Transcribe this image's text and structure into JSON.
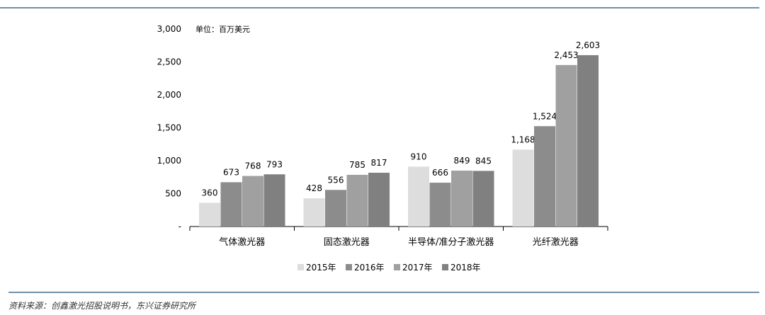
{
  "chart_data": {
    "type": "bar",
    "unit_note": "单位：百万美元",
    "categories": [
      "气体激光器",
      "固态激光器",
      "半导体/准分子激光器",
      "光纤激光器"
    ],
    "series": [
      {
        "name": "2015年",
        "values": [
          360,
          428,
          910,
          1168
        ],
        "color": "#dddddd"
      },
      {
        "name": "2016年",
        "values": [
          673,
          556,
          666,
          1524
        ],
        "color": "#8c8c8c"
      },
      {
        "name": "2017年",
        "values": [
          768,
          785,
          849,
          2453
        ],
        "color": "#a0a0a0"
      },
      {
        "name": "2018年",
        "values": [
          793,
          817,
          845,
          2603
        ],
        "color": "#808080"
      }
    ],
    "data_labels": [
      [
        "360",
        "428",
        "910",
        "1,168"
      ],
      [
        "673",
        "556",
        "666",
        "1,524"
      ],
      [
        "768",
        "785",
        "849",
        "2,453"
      ],
      [
        "793",
        "817",
        "845",
        "2,603"
      ]
    ],
    "yticks": [
      0,
      500,
      1000,
      1500,
      2000,
      2500,
      3000
    ],
    "ytick_labels": [
      "-",
      "500",
      "1,000",
      "1,500",
      "2,000",
      "2,500",
      "3,000"
    ],
    "ylim": [
      0,
      3000
    ],
    "legend_position": "bottom",
    "grid": false
  },
  "source": "资料来源：创鑫激光招股说明书，东兴证券研究所",
  "colors": {
    "rule": "#1f4e79",
    "axis": "#000000",
    "text": "#000000"
  }
}
